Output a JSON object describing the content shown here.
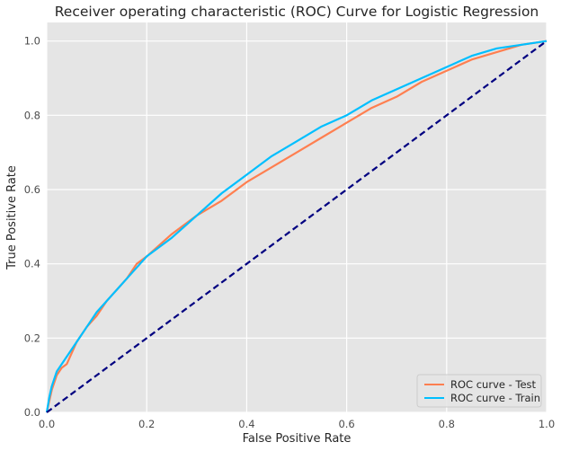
{
  "chart_data": {
    "type": "line",
    "title": "Receiver operating characteristic (ROC) Curve for Logistic Regression",
    "xlabel": "False Positive Rate",
    "ylabel": "True Positive Rate",
    "xlim": [
      0.0,
      1.0
    ],
    "ylim": [
      0.0,
      1.05
    ],
    "xticks": [
      "0.0",
      "0.2",
      "0.4",
      "0.6",
      "0.8",
      "1.0"
    ],
    "yticks": [
      "0.0",
      "0.2",
      "0.4",
      "0.6",
      "0.8",
      "1.0"
    ],
    "grid": true,
    "legend_position": "lower-right",
    "series": [
      {
        "name": "ROC curve - Test",
        "color": "#ff7f50",
        "dashed": false,
        "points": [
          [
            0.0,
            0.0
          ],
          [
            0.005,
            0.03
          ],
          [
            0.01,
            0.06
          ],
          [
            0.02,
            0.1
          ],
          [
            0.03,
            0.12
          ],
          [
            0.04,
            0.13
          ],
          [
            0.05,
            0.16
          ],
          [
            0.06,
            0.19
          ],
          [
            0.07,
            0.21
          ],
          [
            0.08,
            0.23
          ],
          [
            0.1,
            0.26
          ],
          [
            0.12,
            0.3
          ],
          [
            0.14,
            0.33
          ],
          [
            0.16,
            0.36
          ],
          [
            0.18,
            0.4
          ],
          [
            0.2,
            0.42
          ],
          [
            0.25,
            0.48
          ],
          [
            0.3,
            0.53
          ],
          [
            0.35,
            0.57
          ],
          [
            0.4,
            0.62
          ],
          [
            0.45,
            0.66
          ],
          [
            0.5,
            0.7
          ],
          [
            0.55,
            0.74
          ],
          [
            0.6,
            0.78
          ],
          [
            0.65,
            0.82
          ],
          [
            0.7,
            0.85
          ],
          [
            0.75,
            0.89
          ],
          [
            0.8,
            0.92
          ],
          [
            0.85,
            0.95
          ],
          [
            0.9,
            0.97
          ],
          [
            0.95,
            0.99
          ],
          [
            1.0,
            1.0
          ]
        ]
      },
      {
        "name": "ROC curve - Train",
        "color": "#00bfff",
        "dashed": false,
        "points": [
          [
            0.0,
            0.0
          ],
          [
            0.005,
            0.04
          ],
          [
            0.01,
            0.07
          ],
          [
            0.02,
            0.11
          ],
          [
            0.03,
            0.13
          ],
          [
            0.04,
            0.15
          ],
          [
            0.05,
            0.17
          ],
          [
            0.06,
            0.19
          ],
          [
            0.08,
            0.23
          ],
          [
            0.1,
            0.27
          ],
          [
            0.12,
            0.3
          ],
          [
            0.14,
            0.33
          ],
          [
            0.16,
            0.36
          ],
          [
            0.18,
            0.39
          ],
          [
            0.2,
            0.42
          ],
          [
            0.25,
            0.47
          ],
          [
            0.3,
            0.53
          ],
          [
            0.35,
            0.59
          ],
          [
            0.4,
            0.64
          ],
          [
            0.45,
            0.69
          ],
          [
            0.5,
            0.73
          ],
          [
            0.55,
            0.77
          ],
          [
            0.6,
            0.8
          ],
          [
            0.65,
            0.84
          ],
          [
            0.7,
            0.87
          ],
          [
            0.75,
            0.9
          ],
          [
            0.8,
            0.93
          ],
          [
            0.85,
            0.96
          ],
          [
            0.9,
            0.98
          ],
          [
            0.95,
            0.99
          ],
          [
            1.0,
            1.0
          ]
        ]
      },
      {
        "color": "#000080",
        "dashed": true,
        "points": [
          [
            0.0,
            0.0
          ],
          [
            1.0,
            1.0
          ]
        ]
      }
    ]
  }
}
